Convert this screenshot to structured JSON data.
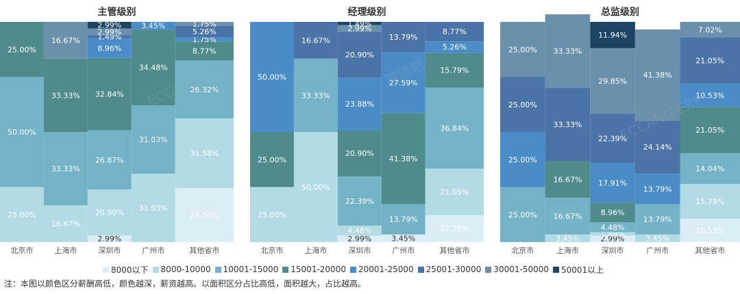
{
  "legend": {
    "items": [
      {
        "label": "8000以下",
        "color": "#dcedf5"
      },
      {
        "label": "8000-10000",
        "color": "#b2dbe6"
      },
      {
        "label": "10001-15000",
        "color": "#74b2c8"
      },
      {
        "label": "15001-20000",
        "color": "#4e8b8a"
      },
      {
        "label": "20001-25000",
        "color": "#4a8cc8"
      },
      {
        "label": "25001-30000",
        "color": "#4a74a8"
      },
      {
        "label": "30001-50000",
        "color": "#6a90ac"
      },
      {
        "label": "50001以上",
        "color": "#1e4464"
      }
    ]
  },
  "note": "注：本图以颜色区分薪酬高低，颜色越深，薪资越高。以面积区分占比高低，面积越大，占比越高。",
  "watermark": [
    "ECCANG ERP",
    "跨境眼"
  ],
  "chart_data": [
    {
      "type": "bar",
      "title": "主管级别",
      "categories": [
        "北京市",
        "上海市",
        "深圳市",
        "广州市",
        "其他省市"
      ],
      "column_share": [
        0.1875,
        0.1875,
        0.1875,
        0.1875,
        0.25
      ],
      "series": [
        {
          "name": "8000以下",
          "values": [
            0,
            0,
            2.99,
            0,
            24.56
          ]
        },
        {
          "name": "8000-10000",
          "values": [
            25.0,
            16.67,
            20.9,
            31.03,
            31.58
          ]
        },
        {
          "name": "10001-15000",
          "values": [
            50.0,
            33.33,
            26.87,
            31.03,
            26.32
          ]
        },
        {
          "name": "15001-20000",
          "values": [
            25.0,
            33.33,
            32.84,
            34.48,
            8.77
          ]
        },
        {
          "name": "20001-25000",
          "values": [
            0,
            0,
            8.96,
            3.45,
            1.75
          ]
        },
        {
          "name": "25001-30000",
          "values": [
            0,
            0,
            1.49,
            0,
            5.26
          ]
        },
        {
          "name": "30001-50000",
          "values": [
            0,
            16.67,
            2.99,
            0,
            1.75
          ]
        },
        {
          "name": "50001以上",
          "values": [
            0,
            0,
            2.99,
            0,
            0
          ]
        }
      ]
    },
    {
      "type": "bar",
      "title": "经理级别",
      "categories": [
        "北京市",
        "上海市",
        "深圳市",
        "广州市",
        "其他省市"
      ],
      "column_share": [
        0.1875,
        0.1875,
        0.1875,
        0.1875,
        0.25
      ],
      "series": [
        {
          "name": "8000以下",
          "values": [
            0,
            0,
            2.99,
            3.45,
            12.28
          ]
        },
        {
          "name": "8000-10000",
          "values": [
            25.0,
            50.0,
            4.48,
            0,
            21.05
          ]
        },
        {
          "name": "10001-15000",
          "values": [
            0,
            33.33,
            22.39,
            13.79,
            36.84
          ]
        },
        {
          "name": "15001-20000",
          "values": [
            25.0,
            0,
            20.9,
            41.38,
            15.79
          ]
        },
        {
          "name": "20001-25000",
          "values": [
            50.0,
            0,
            23.88,
            27.59,
            5.26
          ]
        },
        {
          "name": "25001-30000",
          "values": [
            0,
            16.67,
            20.9,
            13.79,
            8.77
          ]
        },
        {
          "name": "30001-50000",
          "values": [
            0,
            0,
            2.99,
            0,
            0
          ]
        },
        {
          "name": "50001以上",
          "values": [
            0,
            0,
            1.49,
            0,
            0
          ]
        }
      ]
    },
    {
      "type": "bar",
      "title": "总监级别",
      "categories": [
        "北京市",
        "上海市",
        "深圳市",
        "广州市",
        "其他省市"
      ],
      "column_share": [
        0.1875,
        0.1875,
        0.1875,
        0.1875,
        0.25
      ],
      "series": [
        {
          "name": "8000以下",
          "values": [
            0,
            0,
            2.99,
            0,
            10.53
          ]
        },
        {
          "name": "8000-10000",
          "values": [
            0,
            3.45,
            1.49,
            3.45,
            15.79
          ]
        },
        {
          "name": "10001-15000",
          "values": [
            25.0,
            16.67,
            4.48,
            13.79,
            14.04
          ]
        },
        {
          "name": "15001-20000",
          "values": [
            0,
            16.67,
            8.96,
            0,
            21.05
          ]
        },
        {
          "name": "20001-25000",
          "values": [
            25.0,
            0,
            17.91,
            13.79,
            10.53
          ]
        },
        {
          "name": "25001-30000",
          "values": [
            25.0,
            33.33,
            22.39,
            24.14,
            21.05
          ]
        },
        {
          "name": "30001-50000",
          "values": [
            25.0,
            33.33,
            29.85,
            41.38,
            7.02
          ]
        },
        {
          "name": "50001以上",
          "values": [
            0,
            0,
            11.94,
            0,
            0
          ]
        }
      ]
    }
  ]
}
